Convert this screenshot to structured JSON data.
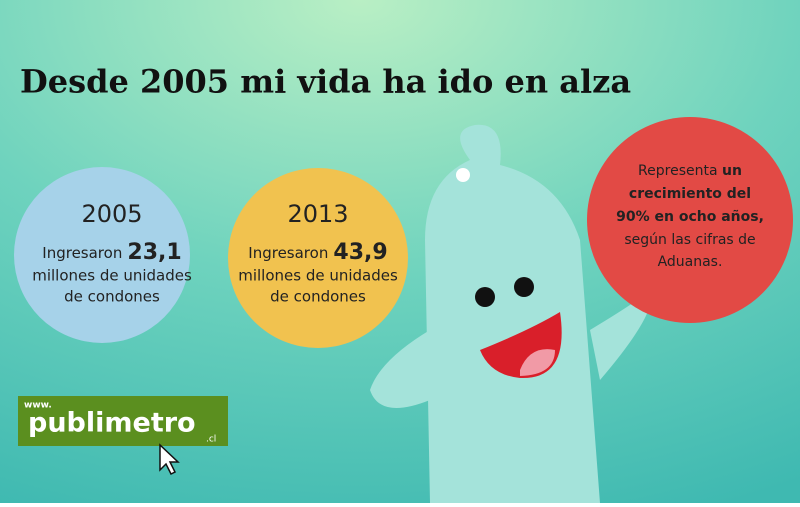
{
  "title": "Desde 2005 mi vida ha ido en alza",
  "circles": [
    {
      "year": "2005",
      "verb": "Ingresaron",
      "amount": "23,1",
      "lines": [
        "millones de unidades",
        "de condones"
      ]
    },
    {
      "year": "2013",
      "verb": "Ingresaron",
      "amount": "43,9",
      "lines": [
        "millones de unidades",
        "de condones"
      ]
    }
  ],
  "growth": {
    "intro": "Representa",
    "bold_lines": [
      "un",
      "crecimiento del",
      "90% en ocho años,"
    ],
    "lines": [
      "según las cifras de",
      "Aduanas."
    ]
  },
  "logo": {
    "prefix": "www.",
    "name": "publimetro",
    "suffix": ".cl"
  }
}
